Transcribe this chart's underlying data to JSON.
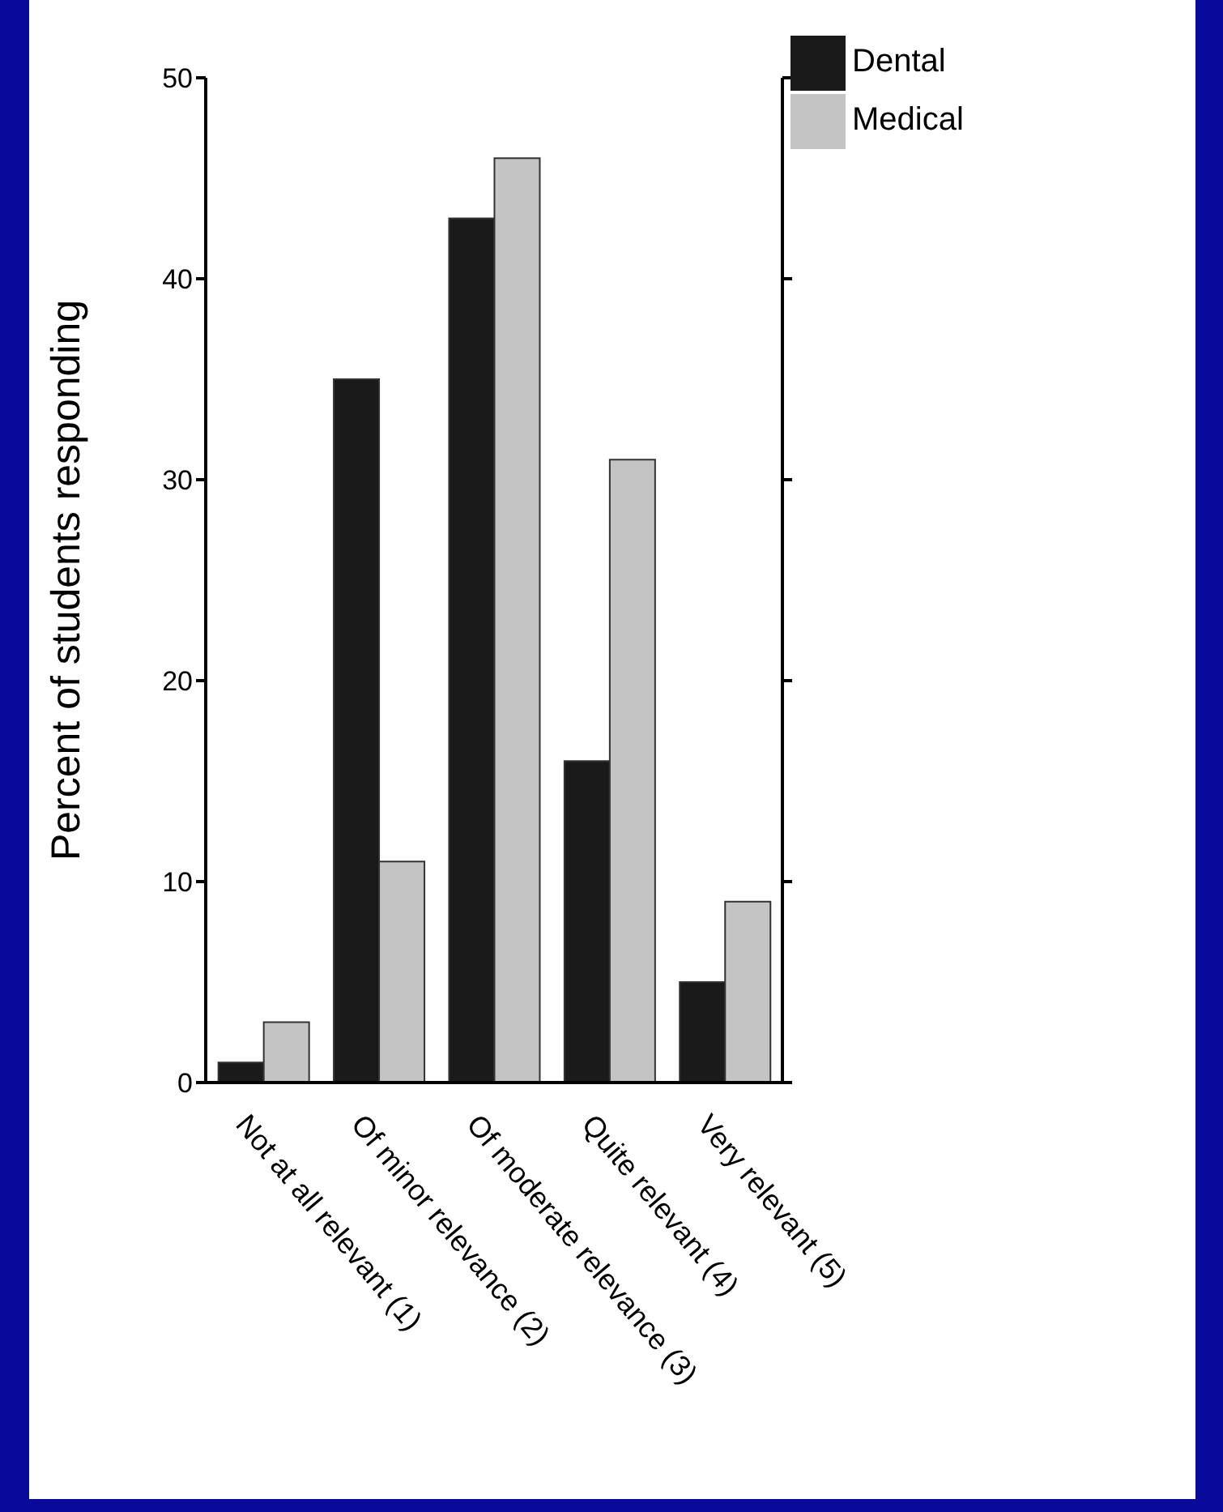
{
  "chart_data": {
    "type": "bar",
    "ylabel": "Percent of students responding",
    "categories": [
      "Not at all relevant (1)",
      "Of minor relevance (2)",
      "Of moderate relevance (3)",
      "Quite relevant (4)",
      "Very relevant (5)"
    ],
    "series": [
      {
        "name": "Dental",
        "color": "#1a1a1a",
        "values": [
          1,
          35,
          43,
          16,
          5
        ]
      },
      {
        "name": "Medical",
        "color": "#c4c4c4",
        "values": [
          3,
          11,
          46,
          31,
          9
        ]
      }
    ],
    "ylim": [
      0,
      50
    ],
    "yticks": [
      0,
      10,
      20,
      30,
      40,
      50
    ],
    "legend": "top right"
  }
}
